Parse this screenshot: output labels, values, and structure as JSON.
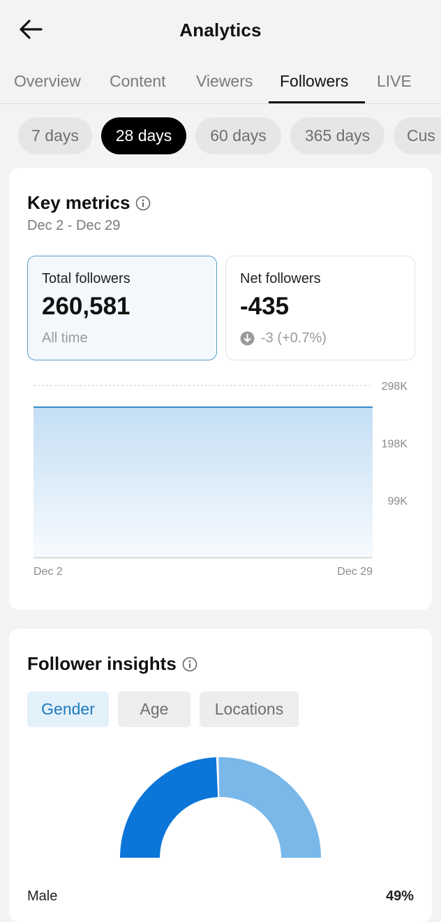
{
  "header": {
    "title": "Analytics",
    "back_icon": "arrow-left-icon"
  },
  "tabs": [
    {
      "label": "Overview",
      "active": false
    },
    {
      "label": "Content",
      "active": false
    },
    {
      "label": "Viewers",
      "active": false
    },
    {
      "label": "Followers",
      "active": true
    },
    {
      "label": "LIVE",
      "active": false
    }
  ],
  "date_ranges": [
    {
      "label": "7 days",
      "active": false
    },
    {
      "label": "28 days",
      "active": true
    },
    {
      "label": "60 days",
      "active": false
    },
    {
      "label": "365 days",
      "active": false
    },
    {
      "label": "Cus",
      "active": false
    }
  ],
  "key_metrics": {
    "title": "Key metrics",
    "date_range": "Dec 2 - Dec 29",
    "total_followers": {
      "label": "Total followers",
      "value": "260,581",
      "sub": "All time"
    },
    "net_followers": {
      "label": "Net followers",
      "value": "-435",
      "change": "-3 (+0.7%)",
      "change_icon": "arrow-down-circle-icon"
    }
  },
  "chart_data": {
    "type": "area",
    "x": [
      "Dec 2",
      "Dec 29"
    ],
    "values": [
      260581,
      260581
    ],
    "x_tick_labels": [
      "Dec 2",
      "Dec 29"
    ],
    "y_tick_labels": [
      "298K",
      "198K",
      "99K"
    ],
    "y_ticks": [
      298000,
      198000,
      99000
    ],
    "ylim": [
      0,
      298000
    ],
    "grid": true,
    "line_color": "#2f86c9",
    "fill_color": "#cce3f6"
  },
  "follower_insights": {
    "title": "Follower insights",
    "segments": [
      {
        "label": "Gender",
        "active": true
      },
      {
        "label": "Age",
        "active": false
      },
      {
        "label": "Locations",
        "active": false
      }
    ],
    "donut": {
      "slices": [
        {
          "share": 0.49,
          "color": "#0b75d8"
        },
        {
          "share": 0.51,
          "color": "#7ab8ea"
        }
      ]
    },
    "legend_left": "Male",
    "legend_right": "49%"
  },
  "colors": {
    "accent": "#0b75d8",
    "active_pill": "#000000",
    "selected_card_border": "#5d9ec4"
  }
}
